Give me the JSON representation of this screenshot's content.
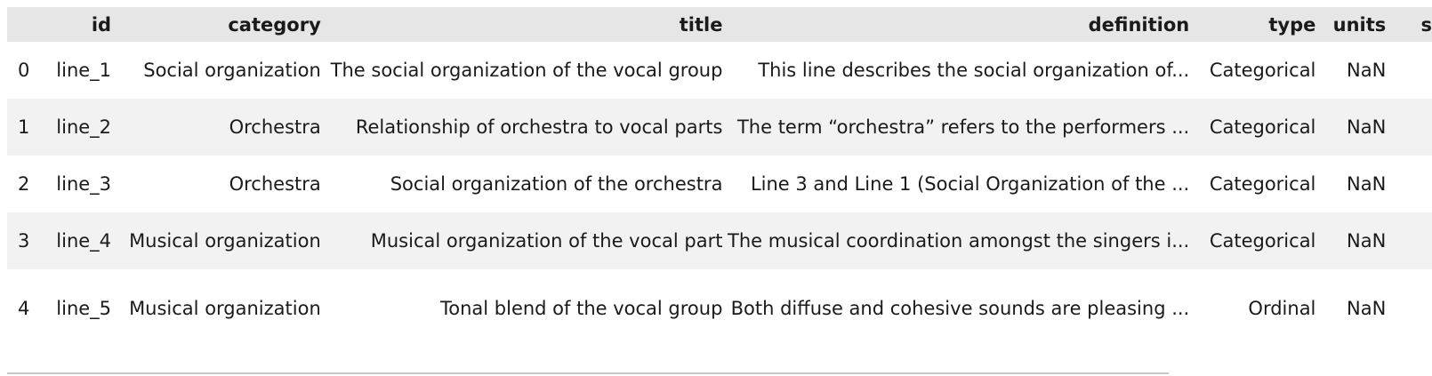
{
  "table": {
    "columns": {
      "id": "id",
      "category": "category",
      "title": "title",
      "definition": "definition",
      "type": "type",
      "units": "units",
      "next_partial": "s"
    },
    "rows": [
      {
        "index": "0",
        "id": "line_1",
        "category": "Social organization",
        "title": "The social organization of the vocal group",
        "definition": "This line describes the social organization of...",
        "type": "Categorical",
        "units": "NaN"
      },
      {
        "index": "1",
        "id": "line_2",
        "category": "Orchestra",
        "title": "Relationship of orchestra to vocal parts",
        "definition": "The term “orchestra” refers to the performers ...",
        "type": "Categorical",
        "units": "NaN"
      },
      {
        "index": "2",
        "id": "line_3",
        "category": "Orchestra",
        "title": "Social organization of the orchestra",
        "definition": "Line 3 and Line 1 (Social Organization of the ...",
        "type": "Categorical",
        "units": "NaN"
      },
      {
        "index": "3",
        "id": "line_4",
        "category": "Musical organization",
        "title": "Musical organization of the vocal part",
        "definition": "The musical coordination amongst the singers i...",
        "type": "Categorical",
        "units": "NaN"
      },
      {
        "index": "4",
        "id": "line_5",
        "category": "Musical organization",
        "title": "Tonal blend of the vocal group",
        "definition": "Both diffuse and cohesive sounds are pleasing ...",
        "type": "Ordinal",
        "units": "NaN"
      }
    ]
  },
  "colors": {
    "header_bg": "#e6e6e6",
    "stripe_bg": "#f2f2f2",
    "scrollbar": "#c8c8c8"
  }
}
